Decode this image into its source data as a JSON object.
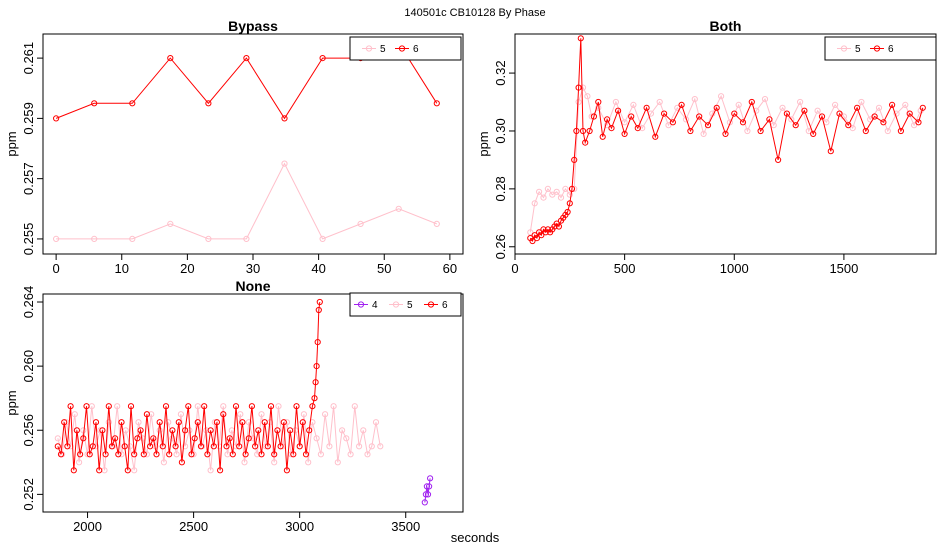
{
  "title": "140501c    CB10128   By Phase",
  "xlabel_global": "seconds",
  "colors": {
    "4": "#a020f0",
    "5": "#ffc0cb",
    "6": "#ff0000"
  },
  "chart_data": [
    {
      "type": "line",
      "title": "Bypass",
      "ylabel": "ppm",
      "xlim": [
        -2,
        62
      ],
      "ylim": [
        0.2545,
        0.2618
      ],
      "xticks": [
        0,
        10,
        20,
        30,
        40,
        50,
        60
      ],
      "xtick_labels": [
        "0",
        "10",
        "20",
        "30",
        "40",
        "50",
        "60"
      ],
      "yticks": [
        0.255,
        0.257,
        0.259,
        0.261
      ],
      "ytick_labels": [
        "0.255",
        "0.257",
        "0.259",
        "0.261"
      ],
      "legend": [
        "5",
        "6"
      ],
      "series": [
        {
          "name": "5",
          "color": "#ffc0cb",
          "style": "b",
          "x": [
            0,
            5.8,
            11.6,
            17.4,
            23.2,
            29,
            34.8,
            40.6,
            46.4,
            52.2,
            58
          ],
          "y": [
            0.255,
            0.255,
            0.255,
            0.2555,
            0.255,
            0.255,
            0.2575,
            0.255,
            0.2555,
            0.256,
            0.2555
          ]
        },
        {
          "name": "6",
          "color": "#ff0000",
          "style": "b",
          "x": [
            0,
            5.8,
            11.6,
            17.4,
            23.2,
            29,
            34.8,
            40.6,
            46.4,
            52.2,
            58
          ],
          "y": [
            0.259,
            0.2595,
            0.2595,
            0.261,
            0.2595,
            0.261,
            0.259,
            0.261,
            0.261,
            0.2615,
            0.2595
          ]
        }
      ]
    },
    {
      "type": "line",
      "title": "Both",
      "ylabel": "ppm",
      "xlim": [
        0,
        1920
      ],
      "ylim": [
        0.2575,
        0.3335
      ],
      "xticks": [
        0,
        500,
        1000,
        1500
      ],
      "xtick_labels": [
        "0",
        "500",
        "1000",
        "1500"
      ],
      "yticks": [
        0.26,
        0.28,
        0.3,
        0.32
      ],
      "ytick_labels": [
        "0.26",
        "0.28",
        "0.30",
        "0.32"
      ],
      "legend": [
        "5",
        "6"
      ],
      "series": [
        {
          "name": "5",
          "color": "#ffc0cb",
          "style": "b",
          "x": [
            70,
            90,
            110,
            130,
            150,
            170,
            190,
            210,
            230,
            250,
            270,
            290,
            310,
            330,
            350,
            380,
            420,
            460,
            500,
            540,
            580,
            620,
            660,
            700,
            740,
            780,
            820,
            860,
            900,
            940,
            980,
            1020,
            1060,
            1100,
            1140,
            1180,
            1220,
            1260,
            1300,
            1340,
            1380,
            1420,
            1460,
            1500,
            1540,
            1580,
            1620,
            1660,
            1700,
            1740,
            1780,
            1820,
            1850
          ],
          "y": [
            0.265,
            0.275,
            0.279,
            0.277,
            0.28,
            0.278,
            0.279,
            0.277,
            0.28,
            0.278,
            0.28,
            0.31,
            0.315,
            0.312,
            0.305,
            0.308,
            0.302,
            0.31,
            0.303,
            0.309,
            0.301,
            0.306,
            0.31,
            0.302,
            0.308,
            0.304,
            0.311,
            0.299,
            0.306,
            0.312,
            0.303,
            0.309,
            0.3,
            0.307,
            0.311,
            0.302,
            0.308,
            0.304,
            0.31,
            0.3,
            0.307,
            0.303,
            0.309,
            0.305,
            0.301,
            0.31,
            0.304,
            0.308,
            0.3,
            0.306,
            0.309,
            0.302,
            0.307
          ]
        },
        {
          "name": "6",
          "color": "#ff0000",
          "style": "b",
          "x": [
            70,
            80,
            90,
            100,
            110,
            120,
            130,
            140,
            150,
            160,
            170,
            180,
            190,
            200,
            210,
            220,
            230,
            240,
            250,
            260,
            270,
            280,
            290,
            300,
            310,
            320,
            340,
            360,
            380,
            400,
            420,
            440,
            470,
            500,
            530,
            560,
            600,
            640,
            680,
            720,
            760,
            800,
            840,
            880,
            920,
            960,
            1000,
            1040,
            1080,
            1120,
            1160,
            1200,
            1240,
            1280,
            1320,
            1360,
            1400,
            1440,
            1480,
            1520,
            1560,
            1600,
            1640,
            1680,
            1720,
            1760,
            1800,
            1840,
            1860
          ],
          "y": [
            0.263,
            0.262,
            0.264,
            0.263,
            0.265,
            0.264,
            0.266,
            0.265,
            0.266,
            0.265,
            0.266,
            0.267,
            0.268,
            0.267,
            0.269,
            0.27,
            0.271,
            0.272,
            0.275,
            0.28,
            0.29,
            0.3,
            0.315,
            0.332,
            0.3,
            0.296,
            0.3,
            0.305,
            0.31,
            0.298,
            0.304,
            0.301,
            0.307,
            0.299,
            0.305,
            0.301,
            0.308,
            0.298,
            0.306,
            0.303,
            0.309,
            0.3,
            0.305,
            0.302,
            0.308,
            0.299,
            0.306,
            0.303,
            0.31,
            0.3,
            0.304,
            0.29,
            0.306,
            0.302,
            0.307,
            0.299,
            0.305,
            0.293,
            0.306,
            0.302,
            0.308,
            0.3,
            0.305,
            0.303,
            0.309,
            0.3,
            0.306,
            0.303,
            0.308
          ]
        }
      ]
    },
    {
      "type": "line",
      "title": "None",
      "ylabel": "ppm",
      "xlim": [
        1790,
        3770
      ],
      "ylim": [
        0.2509,
        0.2645
      ],
      "xticks": [
        2000,
        2500,
        3000,
        3500
      ],
      "xtick_labels": [
        "2000",
        "2500",
        "3000",
        "3500"
      ],
      "yticks": [
        0.252,
        0.256,
        0.26,
        0.264
      ],
      "ytick_labels": [
        "0.252",
        "0.256",
        "0.260",
        "0.264"
      ],
      "legend": [
        "4",
        "5",
        "6"
      ],
      "series": [
        {
          "name": "4",
          "color": "#a020f0",
          "style": "b",
          "x": [
            3590,
            3595,
            3600,
            3605,
            3610,
            3615
          ],
          "y": [
            0.2515,
            0.252,
            0.2525,
            0.252,
            0.2525,
            0.253
          ]
        },
        {
          "name": "5",
          "color": "#ffc0cb",
          "style": "b",
          "x": [
            1860,
            1880,
            1900,
            1920,
            1940,
            1960,
            1980,
            2000,
            2020,
            2040,
            2060,
            2080,
            2100,
            2120,
            2140,
            2160,
            2180,
            2200,
            2220,
            2240,
            2260,
            2280,
            2300,
            2320,
            2340,
            2360,
            2380,
            2400,
            2420,
            2440,
            2460,
            2480,
            2500,
            2520,
            2540,
            2560,
            2580,
            2600,
            2620,
            2640,
            2660,
            2680,
            2700,
            2720,
            2740,
            2760,
            2780,
            2800,
            2820,
            2840,
            2860,
            2880,
            2900,
            2920,
            2940,
            2960,
            2980,
            3000,
            3020,
            3040,
            3060,
            3080,
            3100,
            3120,
            3140,
            3160,
            3180,
            3200,
            3220,
            3240,
            3260,
            3280,
            3300,
            3320,
            3340,
            3360,
            3380
          ],
          "y": [
            0.2555,
            0.2545,
            0.2565,
            0.255,
            0.257,
            0.254,
            0.256,
            0.2545,
            0.2575,
            0.255,
            0.256,
            0.2535,
            0.2565,
            0.255,
            0.2575,
            0.2545,
            0.256,
            0.255,
            0.2535,
            0.2565,
            0.2555,
            0.2545,
            0.257,
            0.255,
            0.256,
            0.254,
            0.2565,
            0.2555,
            0.2545,
            0.257,
            0.255,
            0.256,
            0.2545,
            0.2575,
            0.255,
            0.256,
            0.2535,
            0.2565,
            0.255,
            0.2575,
            0.2545,
            0.256,
            0.255,
            0.257,
            0.254,
            0.2565,
            0.2555,
            0.2545,
            0.257,
            0.255,
            0.2565,
            0.254,
            0.2575,
            0.255,
            0.2565,
            0.2545,
            0.256,
            0.255,
            0.257,
            0.254,
            0.2565,
            0.2555,
            0.2545,
            0.257,
            0.255,
            0.2575,
            0.254,
            0.256,
            0.2555,
            0.2545,
            0.2575,
            0.255,
            0.256,
            0.2545,
            0.255,
            0.2565,
            0.255
          ]
        },
        {
          "name": "6",
          "color": "#ff0000",
          "style": "b",
          "x": [
            1860,
            1875,
            1890,
            1905,
            1920,
            1935,
            1950,
            1965,
            1980,
            1995,
            2010,
            2025,
            2040,
            2055,
            2070,
            2085,
            2100,
            2115,
            2130,
            2145,
            2160,
            2175,
            2190,
            2205,
            2220,
            2235,
            2250,
            2265,
            2280,
            2295,
            2310,
            2325,
            2340,
            2355,
            2370,
            2385,
            2400,
            2415,
            2430,
            2445,
            2460,
            2475,
            2490,
            2505,
            2520,
            2535,
            2550,
            2565,
            2580,
            2595,
            2610,
            2625,
            2640,
            2655,
            2670,
            2685,
            2700,
            2715,
            2730,
            2745,
            2760,
            2775,
            2790,
            2805,
            2820,
            2835,
            2850,
            2865,
            2880,
            2895,
            2910,
            2925,
            2940,
            2955,
            2970,
            2985,
            3000,
            3015,
            3030,
            3045,
            3060,
            3070,
            3075,
            3080,
            3085,
            3090,
            3095
          ],
          "y": [
            0.255,
            0.2545,
            0.2565,
            0.255,
            0.2575,
            0.2535,
            0.256,
            0.2545,
            0.2555,
            0.2575,
            0.2545,
            0.255,
            0.2565,
            0.2535,
            0.256,
            0.2545,
            0.2575,
            0.255,
            0.2555,
            0.2545,
            0.2565,
            0.255,
            0.2535,
            0.2575,
            0.2545,
            0.2555,
            0.256,
            0.2545,
            0.257,
            0.255,
            0.2555,
            0.2545,
            0.2565,
            0.255,
            0.2575,
            0.2545,
            0.256,
            0.255,
            0.2565,
            0.254,
            0.256,
            0.2575,
            0.2545,
            0.2555,
            0.2565,
            0.255,
            0.2575,
            0.2545,
            0.256,
            0.255,
            0.2565,
            0.2535,
            0.257,
            0.255,
            0.2555,
            0.2545,
            0.2575,
            0.255,
            0.2565,
            0.2545,
            0.2555,
            0.2575,
            0.255,
            0.256,
            0.2545,
            0.2565,
            0.255,
            0.2575,
            0.2545,
            0.256,
            0.255,
            0.2565,
            0.2535,
            0.256,
            0.2545,
            0.2575,
            0.255,
            0.2565,
            0.2545,
            0.256,
            0.2575,
            0.258,
            0.259,
            0.26,
            0.2615,
            0.2635,
            0.264
          ]
        }
      ]
    }
  ]
}
